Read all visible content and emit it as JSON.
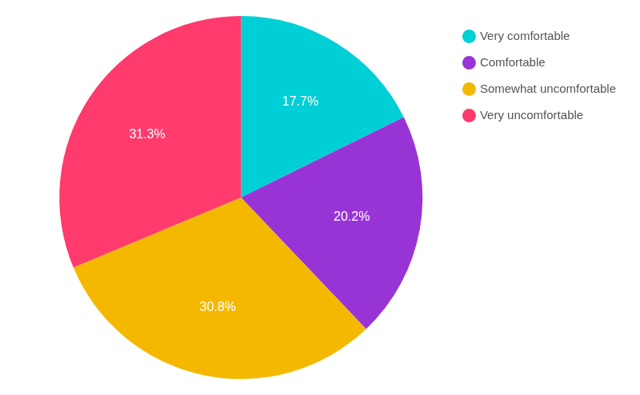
{
  "chart_data": {
    "type": "pie",
    "categories": [
      "Very comfortable",
      "Comfortable",
      "Somewhat uncomfortable",
      "Very uncomfortable"
    ],
    "values": [
      17.7,
      20.2,
      30.8,
      31.3
    ],
    "value_labels": [
      "17.7%",
      "20.2%",
      "30.8%",
      "31.3%"
    ],
    "colors": [
      "#00cfd5",
      "#9834d6",
      "#f4b800",
      "#ff3a6c"
    ],
    "data_labels": true,
    "legend": "top-right"
  }
}
